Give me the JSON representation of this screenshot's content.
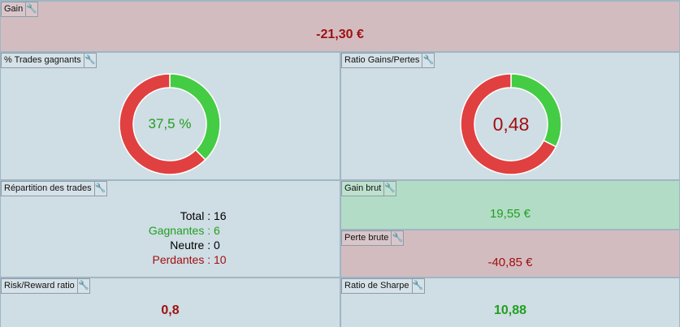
{
  "gain": {
    "label": "Gain",
    "value": "-21,30 €"
  },
  "trades_gagnants": {
    "label": "% Trades gagnants",
    "value": "37,5 %",
    "win_fraction": 0.375
  },
  "ratio": {
    "label": "Ratio Gains/Pertes",
    "value": "0,48",
    "win_fraction": 0.324
  },
  "repartition": {
    "label": "Répartition des trades",
    "total_label": "Total :",
    "total": "16",
    "gagnantes_label": "Gagnantes :",
    "gagnantes": "6",
    "neutre_label": "Neutre :",
    "neutre": "0",
    "perdantes_label": "Perdantes :",
    "perdantes": "10"
  },
  "gain_brut": {
    "label": "Gain brut",
    "value": "19,55 €"
  },
  "perte_brute": {
    "label": "Perte brute",
    "value": "-40,85 €"
  },
  "risk_reward": {
    "label": "Risk/Reward ratio",
    "value": "0,8"
  },
  "sharpe": {
    "label": "Ratio de Sharpe",
    "value": "10,88"
  },
  "colors": {
    "win": "#44cc44",
    "loss": "#e04040"
  }
}
